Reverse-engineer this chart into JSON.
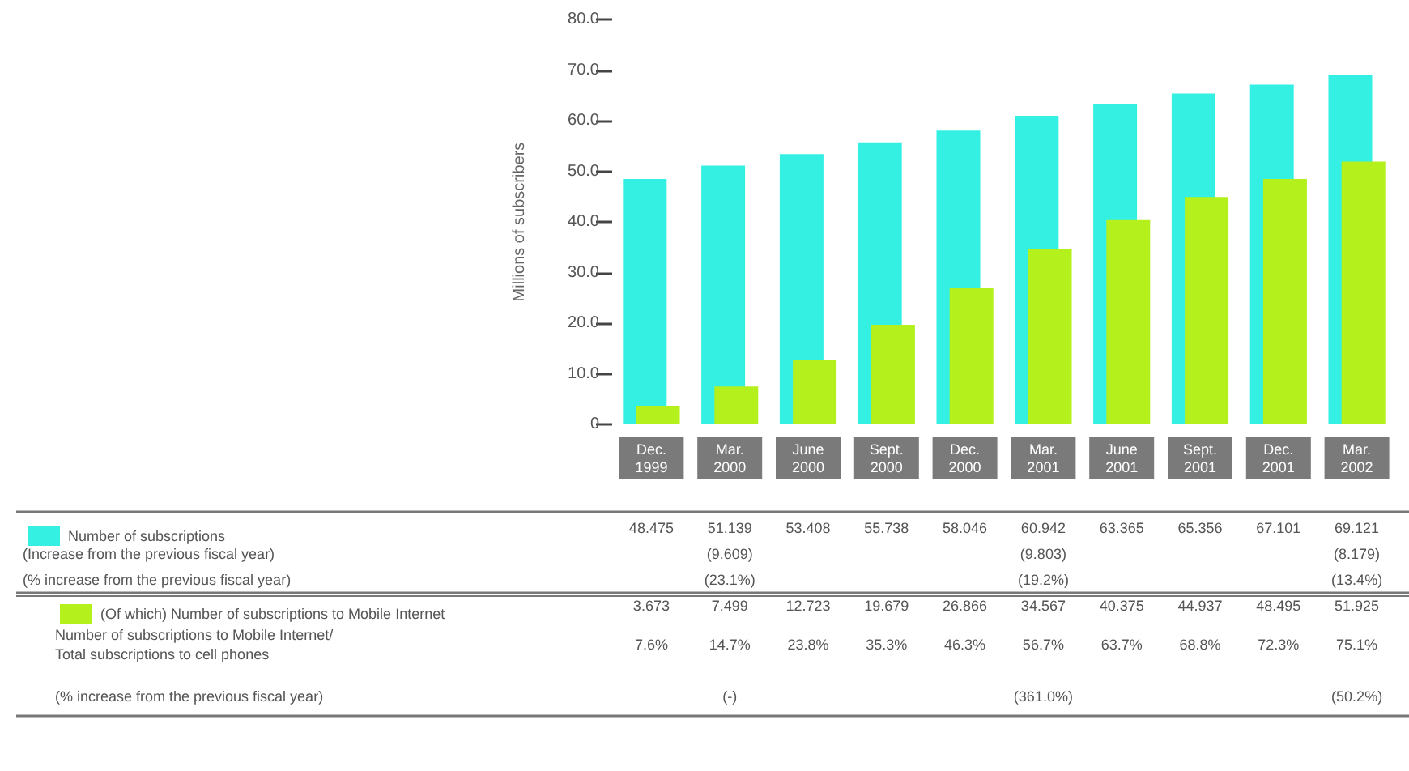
{
  "chart_data": {
    "type": "bar",
    "ylabel": "Millions of subscribers",
    "categories": [
      "Dec. 1999",
      "Mar. 2000",
      "June 2000",
      "Sept. 2000",
      "Dec. 2000",
      "Mar. 2001",
      "June 2001",
      "Sept. 2001",
      "Dec. 2001",
      "Mar. 2002"
    ],
    "series": [
      {
        "name": "Number of subscriptions",
        "color": "#33f0e2",
        "values": [
          48.475,
          51.139,
          53.408,
          55.738,
          58.046,
          60.942,
          63.365,
          65.356,
          67.101,
          69.121
        ]
      },
      {
        "name": "(Of which) Number of subscriptions to Mobile Internet",
        "color": "#b4f01c",
        "values": [
          3.673,
          7.499,
          12.723,
          19.679,
          26.866,
          34.567,
          40.375,
          44.937,
          48.495,
          51.925
        ]
      }
    ],
    "ylim": [
      0,
      80
    ],
    "yticks": [
      0,
      {
        "value": 10,
        "label": "10.0"
      },
      {
        "value": 20,
        "label": "20.0"
      },
      {
        "value": 30,
        "label": "30.0"
      },
      {
        "value": 40,
        "label": "40.0"
      },
      {
        "value": 50,
        "label": "50.0"
      },
      {
        "value": 60,
        "label": "60.0"
      },
      {
        "value": 70,
        "label": "70.0"
      },
      {
        "value": 80,
        "label": "80.0"
      }
    ],
    "grid": false,
    "legend": "bottom left",
    "data_labels": true,
    "annotations": [
      "(Increase from the previous fiscal year)",
      "(9.609)",
      "(9.803)",
      "(8.179)",
      "(% increase from the previous fiscal year)",
      "(23.1%)",
      "(19.2%)",
      "(13.4%)",
      "Number of subscriptions to Mobile Internet/\nTotal subscriptions to cell phones",
      "7.6%",
      "14.7%",
      "23.8%",
      "35.3%",
      "46.3%",
      "56.7%",
      "63.7%",
      "68.8%",
      "72.3%",
      "75.1%",
      "(% increase from the previous fiscal year)",
      "(-)",
      "(361.0%)",
      "(50.2%)"
    ]
  }
}
